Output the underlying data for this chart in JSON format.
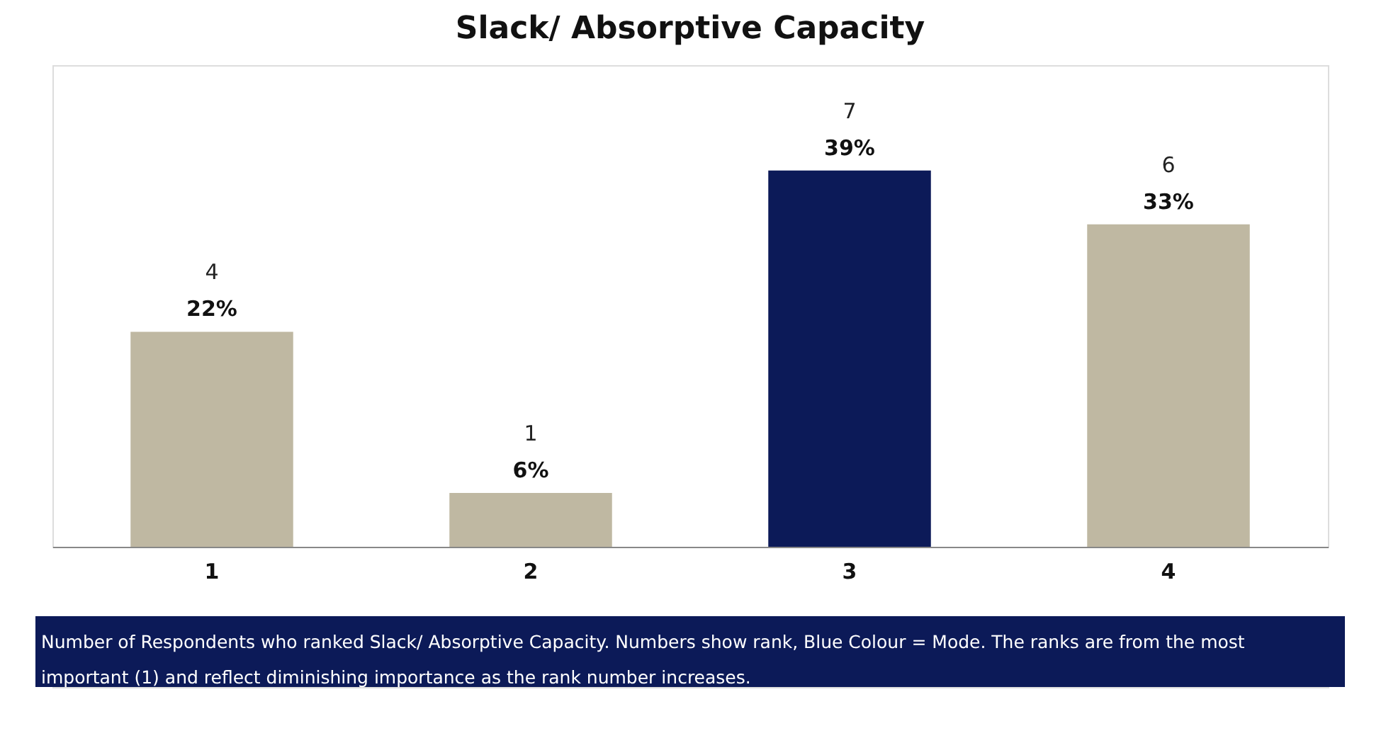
{
  "chart_data": {
    "type": "bar",
    "title": "Slack/ Absorptive Capacity",
    "categories": [
      "1",
      "2",
      "3",
      "4"
    ],
    "values": [
      4,
      1,
      7,
      6
    ],
    "colors": [
      "#bfb8a2",
      "#bfb8a2",
      "#0c1a58",
      "#bfb8a2"
    ],
    "data_labels": true,
    "annotations": [
      {
        "text": "22%",
        "x": "1",
        "y": 4
      },
      {
        "text": "6%",
        "x": "2",
        "y": 1
      },
      {
        "text": "39%",
        "x": "3",
        "y": 7
      },
      {
        "text": "33%",
        "x": "4",
        "y": 6
      },
      "Number of Respondents who ranked Slack/ Absorptive Capacity.  Numbers show rank, Blue Colour = Mode. The ranks are from the most important (1) and reflect diminishing importance as the rank number increases."
    ],
    "grid": false
  }
}
